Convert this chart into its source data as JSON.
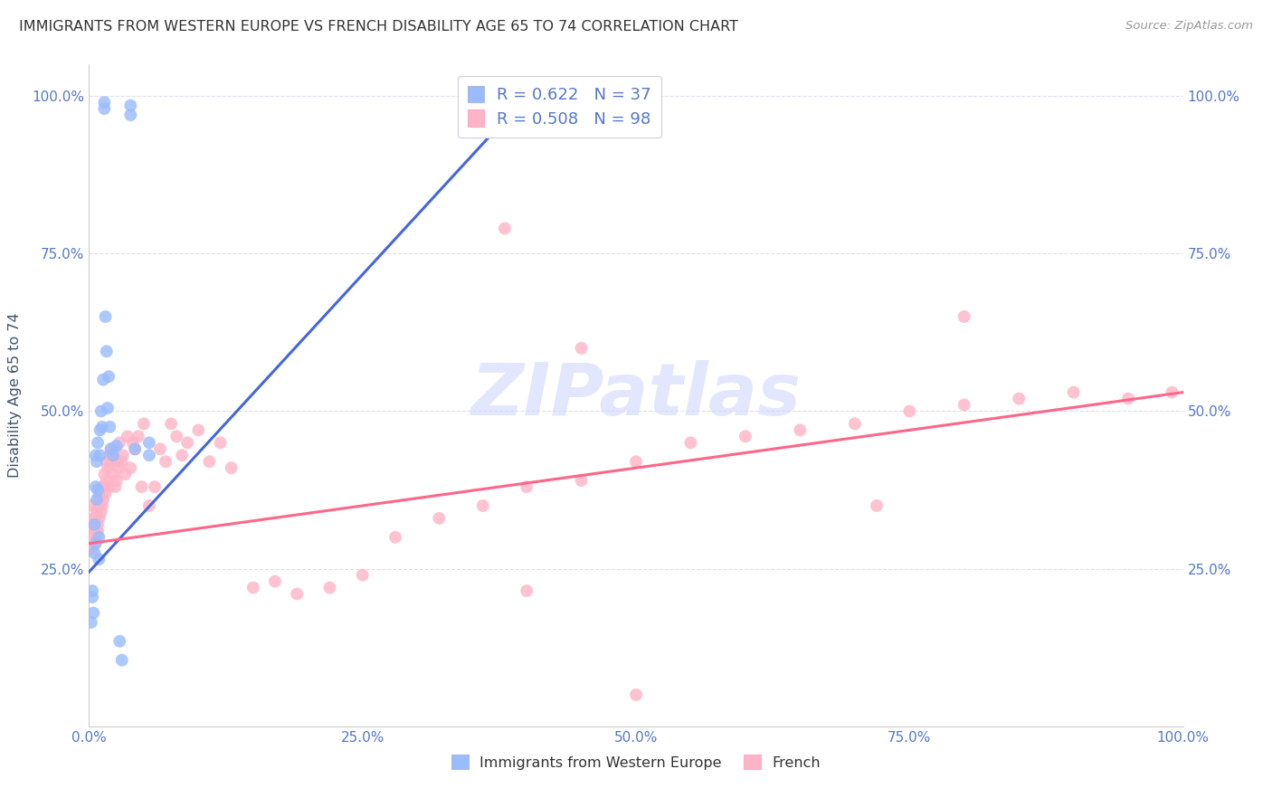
{
  "title": "IMMIGRANTS FROM WESTERN EUROPE VS FRENCH DISABILITY AGE 65 TO 74 CORRELATION CHART",
  "source": "Source: ZipAtlas.com",
  "ylabel": "Disability Age 65 to 74",
  "legend_label1": "Immigrants from Western Europe",
  "legend_label2": "French",
  "r1": 0.622,
  "n1": 37,
  "r2": 0.508,
  "n2": 98,
  "blue_color": "#99BBFF",
  "pink_color": "#FFB3C6",
  "line_blue": "#4466DD",
  "line_pink": "#FF6688",
  "watermark_color": "#D0D8FF",
  "tick_color": "#5577CC",
  "title_color": "#333333",
  "source_color": "#999999",
  "grid_color": "#DDDDEE",
  "blue_x": [
    0.002,
    0.003,
    0.003,
    0.004,
    0.005,
    0.005,
    0.006,
    0.006,
    0.006,
    0.007,
    0.007,
    0.008,
    0.008,
    0.009,
    0.009,
    0.01,
    0.01,
    0.011,
    0.012,
    0.013,
    0.014,
    0.014,
    0.015,
    0.016,
    0.017,
    0.018,
    0.019,
    0.02,
    0.022,
    0.025,
    0.028,
    0.03,
    0.038,
    0.038,
    0.042,
    0.055,
    0.055
  ],
  "blue_y": [
    0.165,
    0.215,
    0.205,
    0.18,
    0.32,
    0.275,
    0.29,
    0.38,
    0.43,
    0.36,
    0.42,
    0.375,
    0.45,
    0.265,
    0.3,
    0.43,
    0.47,
    0.5,
    0.475,
    0.55,
    0.98,
    0.99,
    0.65,
    0.595,
    0.505,
    0.555,
    0.475,
    0.44,
    0.43,
    0.445,
    0.135,
    0.105,
    0.97,
    0.985,
    0.44,
    0.43,
    0.45
  ],
  "pink_x": [
    0.001,
    0.001,
    0.002,
    0.002,
    0.002,
    0.003,
    0.003,
    0.003,
    0.004,
    0.004,
    0.004,
    0.005,
    0.005,
    0.005,
    0.006,
    0.006,
    0.006,
    0.007,
    0.007,
    0.008,
    0.008,
    0.008,
    0.009,
    0.009,
    0.01,
    0.01,
    0.011,
    0.011,
    0.012,
    0.012,
    0.013,
    0.014,
    0.015,
    0.015,
    0.016,
    0.016,
    0.017,
    0.018,
    0.019,
    0.02,
    0.02,
    0.021,
    0.022,
    0.023,
    0.024,
    0.025,
    0.026,
    0.027,
    0.028,
    0.03,
    0.031,
    0.033,
    0.035,
    0.038,
    0.04,
    0.042,
    0.045,
    0.048,
    0.05,
    0.055,
    0.06,
    0.065,
    0.07,
    0.075,
    0.08,
    0.085,
    0.09,
    0.1,
    0.11,
    0.12,
    0.13,
    0.15,
    0.17,
    0.19,
    0.22,
    0.25,
    0.28,
    0.32,
    0.36,
    0.4,
    0.45,
    0.5,
    0.55,
    0.6,
    0.65,
    0.7,
    0.75,
    0.8,
    0.85,
    0.9,
    0.95,
    0.99,
    0.38,
    0.45,
    0.72,
    0.8,
    0.5,
    0.4
  ],
  "pink_y": [
    0.285,
    0.32,
    0.29,
    0.31,
    0.3,
    0.3,
    0.28,
    0.35,
    0.31,
    0.33,
    0.3,
    0.3,
    0.29,
    0.32,
    0.31,
    0.3,
    0.33,
    0.3,
    0.34,
    0.32,
    0.35,
    0.31,
    0.33,
    0.36,
    0.37,
    0.35,
    0.34,
    0.38,
    0.35,
    0.37,
    0.36,
    0.4,
    0.37,
    0.38,
    0.42,
    0.39,
    0.41,
    0.38,
    0.43,
    0.42,
    0.44,
    0.43,
    0.4,
    0.44,
    0.38,
    0.39,
    0.42,
    0.41,
    0.45,
    0.42,
    0.43,
    0.4,
    0.46,
    0.41,
    0.45,
    0.44,
    0.46,
    0.38,
    0.48,
    0.35,
    0.38,
    0.44,
    0.42,
    0.48,
    0.46,
    0.43,
    0.45,
    0.47,
    0.42,
    0.45,
    0.41,
    0.22,
    0.23,
    0.21,
    0.22,
    0.24,
    0.3,
    0.33,
    0.35,
    0.38,
    0.39,
    0.42,
    0.45,
    0.46,
    0.47,
    0.48,
    0.5,
    0.51,
    0.52,
    0.53,
    0.52,
    0.53,
    0.79,
    0.6,
    0.35,
    0.65,
    0.05,
    0.215
  ],
  "xlim": [
    0.0,
    1.0
  ],
  "ylim": [
    0.0,
    1.05
  ],
  "xticks": [
    0.0,
    0.25,
    0.5,
    0.75,
    1.0
  ],
  "xtick_labels": [
    "0.0%",
    "25.0%",
    "50.0%",
    "75.0%",
    "100.0%"
  ],
  "yticks": [
    0.0,
    0.25,
    0.5,
    0.75,
    1.0
  ],
  "ytick_labels": [
    "",
    "25.0%",
    "50.0%",
    "75.0%",
    "100.0%"
  ],
  "blue_line_x0": 0.0,
  "blue_line_x1": 0.4,
  "pink_line_x0": 0.0,
  "pink_line_x1": 1.0
}
